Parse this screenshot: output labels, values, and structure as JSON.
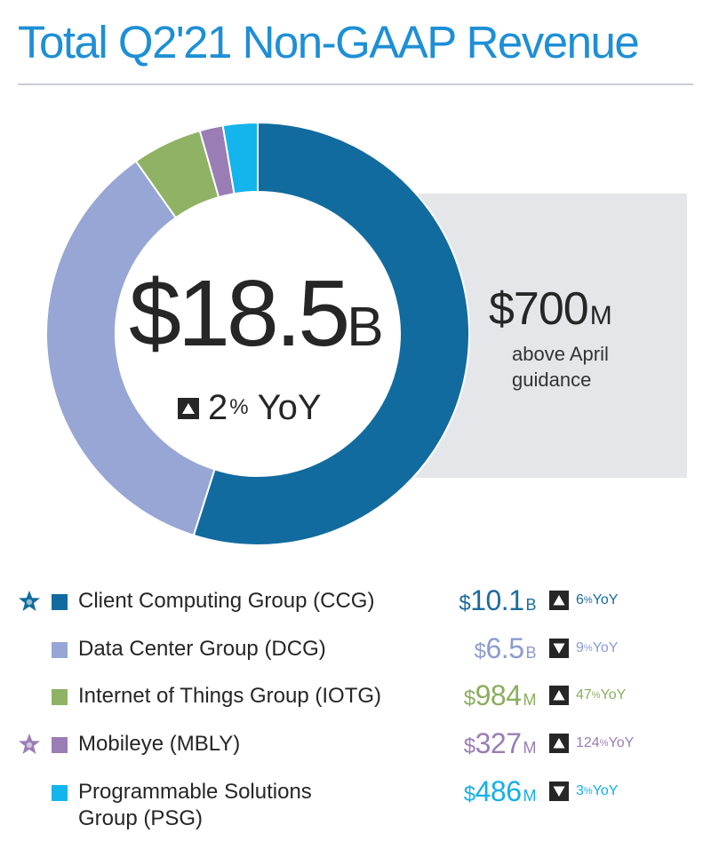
{
  "title": "Total Q2'21 Non-GAAP Revenue",
  "total": {
    "value": "$18.5",
    "unit": "B",
    "yoy_value": "2",
    "yoy_pct": "%",
    "yoy_label": "YoY",
    "direction": "up"
  },
  "guidance": {
    "value": "$700",
    "unit": "M",
    "text": "above April guidance"
  },
  "colors": {
    "title": "#1e8fd6",
    "dark": "#262626"
  },
  "chart_data": {
    "type": "pie",
    "donut": true,
    "title": "Total Q2'21 Non-GAAP Revenue",
    "unit": "$B",
    "categories": [
      "Client Computing Group (CCG)",
      "Data Center Group (DCG)",
      "Internet of Things Group (IOTG)",
      "Mobileye (MBLY)",
      "Programmable Solutions Group (PSG)"
    ],
    "values": [
      10.1,
      6.5,
      0.984,
      0.327,
      0.486
    ],
    "colors": [
      "#126b9e",
      "#97a6d4",
      "#8fb265",
      "#9a7db5",
      "#14b4ec"
    ]
  },
  "legend": [
    {
      "label": "Client Computing Group (CCG)",
      "value": "10.1",
      "currency": "$",
      "unit": "B",
      "change_value": "6",
      "change_pct": "%",
      "change_label": "YoY",
      "direction": "up",
      "star": true,
      "color": "#126b9e",
      "text_color": "#1a6b9e"
    },
    {
      "label": "Data Center Group (DCG)",
      "value": "6.5",
      "currency": "$",
      "unit": "B",
      "change_value": "9",
      "change_pct": "%",
      "change_label": "YoY",
      "direction": "down",
      "star": false,
      "color": "#97a6d4",
      "text_color": "#8c9bd0"
    },
    {
      "label": "Internet of Things Group (IOTG)",
      "value": "984",
      "currency": "$",
      "unit": "M",
      "change_value": "47",
      "change_pct": "%",
      "change_label": "YoY",
      "direction": "up",
      "star": false,
      "color": "#8fb265",
      "text_color": "#8aae5e"
    },
    {
      "label": "Mobileye (MBLY)",
      "value": "327",
      "currency": "$",
      "unit": "M",
      "change_value": "124",
      "change_pct": "%",
      "change_label": "YoY",
      "direction": "up",
      "star": true,
      "color": "#9a7db5",
      "text_color": "#9a7db5"
    },
    {
      "label_line1": "Programmable Solutions",
      "label_line2": "Group (PSG)",
      "value": "486",
      "currency": "$",
      "unit": "M",
      "change_value": "3",
      "change_pct": "%",
      "change_label": "YoY",
      "direction": "down",
      "star": false,
      "color": "#14b4ec",
      "text_color": "#14b0e6"
    }
  ]
}
